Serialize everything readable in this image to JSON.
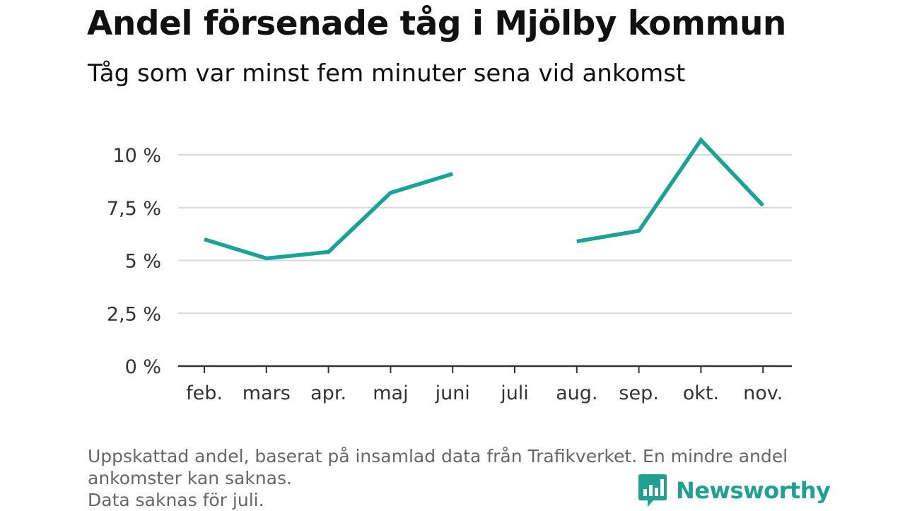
{
  "title": "Andel försenade tåg i Mjölby kommun",
  "subtitle": "Tåg som var minst fem minuter sena vid ankomst",
  "footnote": {
    "line1": "Uppskattad andel, baserat på insamlad data från Trafikverket. En mindre andel",
    "line2": "ankomster kan saknas.",
    "line3": "Data saknas för juli."
  },
  "brand": {
    "name": "Newsworthy",
    "icon": "bar-chart-badge-icon",
    "color": "#1fa093"
  },
  "chart_data": {
    "type": "line",
    "title": "Andel försenade tåg i Mjölby kommun",
    "subtitle": "Tåg som var minst fem minuter sena vid ankomst",
    "categories": [
      "feb.",
      "mars",
      "apr.",
      "maj",
      "juni",
      "juli",
      "aug.",
      "sep.",
      "okt.",
      "nov."
    ],
    "series": [
      {
        "values": [
          6.0,
          5.1,
          5.4,
          8.2,
          9.1,
          null,
          5.9,
          6.4,
          10.7,
          7.6
        ],
        "color": "#17a398"
      }
    ],
    "ylim": [
      0,
      11
    ],
    "yticks": [
      0,
      2.5,
      5,
      7.5,
      10
    ],
    "ytick_labels": [
      "0 %",
      "2,5 %",
      "5 %",
      "7,5 %",
      "10 %"
    ],
    "grid": true,
    "xlabel": "",
    "ylabel": ""
  }
}
